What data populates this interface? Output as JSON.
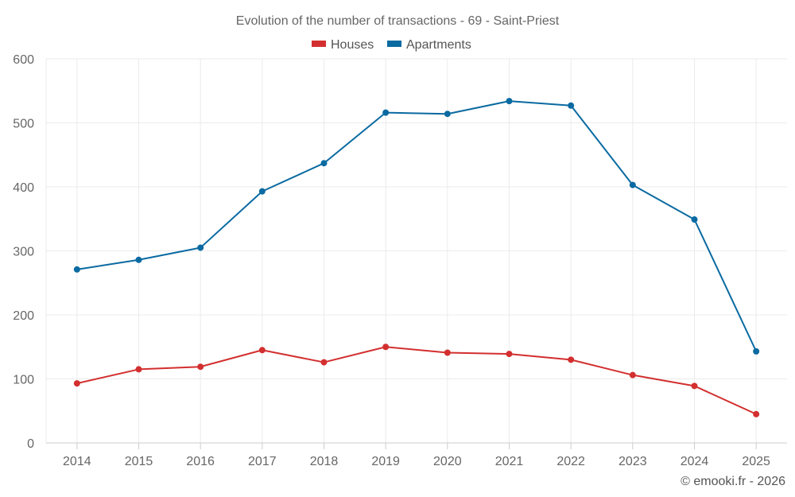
{
  "chart_data": {
    "type": "line",
    "title": "Evolution of the number of transactions - 69 - Saint-Priest",
    "categories": [
      "2014",
      "2015",
      "2016",
      "2017",
      "2018",
      "2019",
      "2020",
      "2021",
      "2022",
      "2023",
      "2024",
      "2025"
    ],
    "series": [
      {
        "name": "Houses",
        "color": "#d32f2f",
        "values": [
          93,
          115,
          119,
          145,
          126,
          150,
          141,
          139,
          130,
          106,
          89,
          45
        ]
      },
      {
        "name": "Apartments",
        "color": "#0a6aa1",
        "values": [
          271,
          286,
          305,
          393,
          437,
          516,
          514,
          534,
          527,
          403,
          349,
          143
        ]
      }
    ],
    "y_ticks": [
      "0",
      "100",
      "200",
      "300",
      "400",
      "500",
      "600"
    ],
    "ylim": [
      0,
      600
    ],
    "xlabel": "",
    "ylabel": "",
    "legend_position": "top-center",
    "grid": true
  },
  "credit": "© emooki.fr - 2026"
}
